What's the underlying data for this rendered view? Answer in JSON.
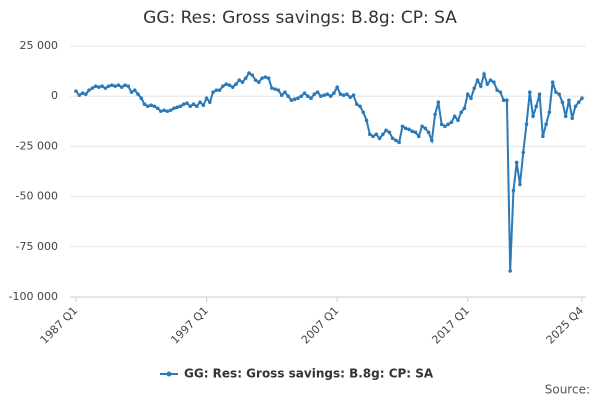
{
  "chart_data": {
    "type": "line",
    "title": "GG: Res: Gross savings: B.8g: CP: SA",
    "source": "Source:",
    "categories": [
      "1987 Q1",
      null,
      null,
      null,
      null,
      null,
      null,
      null,
      null,
      null,
      null,
      null,
      null,
      null,
      null,
      null,
      null,
      null,
      null,
      null,
      null,
      null,
      null,
      null,
      null,
      null,
      null,
      null,
      null,
      null,
      null,
      null,
      null,
      null,
      null,
      null,
      null,
      null,
      null,
      null,
      "1997 Q1",
      null,
      null,
      null,
      null,
      null,
      null,
      null,
      null,
      null,
      null,
      null,
      null,
      null,
      null,
      null,
      null,
      null,
      null,
      null,
      null,
      null,
      null,
      null,
      null,
      null,
      null,
      null,
      null,
      null,
      null,
      null,
      null,
      null,
      null,
      null,
      null,
      null,
      null,
      null,
      "2007 Q1",
      null,
      null,
      null,
      null,
      null,
      null,
      null,
      null,
      null,
      null,
      null,
      null,
      null,
      null,
      null,
      null,
      null,
      null,
      null,
      null,
      null,
      null,
      null,
      null,
      null,
      null,
      null,
      null,
      null,
      null,
      null,
      null,
      null,
      null,
      null,
      null,
      null,
      null,
      null,
      "2017 Q1",
      null,
      null,
      null,
      null,
      null,
      null,
      null,
      null,
      null,
      null,
      null,
      null,
      null,
      null,
      null,
      null,
      null,
      null,
      null,
      null,
      null,
      null,
      null,
      null,
      null,
      null,
      null,
      null,
      null,
      null,
      null,
      null,
      null,
      null,
      "2025 Q4"
    ],
    "series": [
      {
        "name": "GG: Res: Gross savings: B.8g: CP: SA",
        "color": "#2a7ab9",
        "values": [
          2500,
          500,
          1500,
          1000,
          3000,
          4000,
          5000,
          4500,
          5000,
          4000,
          5000,
          5500,
          5000,
          5500,
          4500,
          5500,
          5000,
          2000,
          3000,
          1000,
          -1000,
          -4000,
          -5000,
          -4500,
          -5000,
          -6000,
          -7500,
          -7000,
          -7500,
          -7000,
          -6000,
          -5500,
          -5000,
          -4000,
          -3500,
          -5000,
          -4000,
          -5000,
          -3000,
          -4500,
          -1000,
          -3000,
          2000,
          3000,
          3000,
          5000,
          6000,
          5500,
          4500,
          6000,
          8000,
          7000,
          9000,
          11500,
          10500,
          8000,
          7000,
          9000,
          9500,
          9000,
          4000,
          3500,
          3000,
          500,
          2000,
          0,
          -2000,
          -1500,
          -1000,
          0,
          1500,
          0,
          -1000,
          1000,
          2000,
          0,
          500,
          1000,
          0,
          1500,
          4500,
          1000,
          500,
          1000,
          -500,
          500,
          -4000,
          -5000,
          -8000,
          -12000,
          -19000,
          -20000,
          -19000,
          -21000,
          -19000,
          -17000,
          -18000,
          -21000,
          -22000,
          -23000,
          -15000,
          -16000,
          -16500,
          -17500,
          -18000,
          -20000,
          -15000,
          -16000,
          -18000,
          -22000,
          -9000,
          -3000,
          -14000,
          -15000,
          -14000,
          -13000,
          -10000,
          -12000,
          -8000,
          -6000,
          1000,
          -1000,
          4000,
          8000,
          5000,
          11000,
          6000,
          8000,
          7000,
          3000,
          2000,
          -2000,
          -2000,
          -87000,
          -47000,
          -33000,
          -44000,
          -28000,
          -14000,
          2000,
          -10000,
          -5000,
          1000,
          -20000,
          -14000,
          -8000,
          7000,
          2000,
          1000,
          -3000,
          -10000,
          -2000,
          -11000,
          -5000,
          -3000,
          -1000
        ]
      }
    ],
    "ylim": [
      -100000,
      25000
    ],
    "yticks": [
      {
        "value": -100000,
        "label": "-100 000"
      },
      {
        "value": -75000,
        "label": "-75 000"
      },
      {
        "value": -50000,
        "label": "-50 000"
      },
      {
        "value": -25000,
        "label": "-25 000"
      },
      0,
      {
        "value": 25000,
        "label": "25 000"
      }
    ],
    "grid": true
  }
}
